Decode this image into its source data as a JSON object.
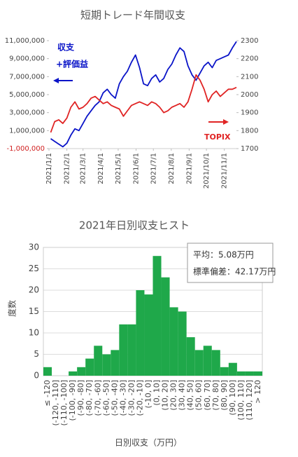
{
  "chart_data": [
    {
      "type": "line",
      "title": "短期トレード年間収支",
      "annotations": [
        "収支",
        "+評価益",
        "TOPIX"
      ],
      "x": [
        "2021/1/4",
        "2021/1/11",
        "2021/1/18",
        "2021/1/25",
        "2021/2/1",
        "2021/2/8",
        "2021/2/15",
        "2021/2/22",
        "2021/3/1",
        "2021/3/8",
        "2021/3/15",
        "2021/3/22",
        "2021/3/29",
        "2021/4/5",
        "2021/4/12",
        "2021/4/19",
        "2021/4/26",
        "2021/5/3",
        "2021/5/10",
        "2021/5/17",
        "2021/5/24",
        "2021/5/31",
        "2021/6/7",
        "2021/6/14",
        "2021/6/21",
        "2021/6/28",
        "2021/7/5",
        "2021/7/12",
        "2021/7/19",
        "2021/7/26",
        "2021/8/2",
        "2021/8/9",
        "2021/8/16",
        "2021/8/23",
        "2021/8/30",
        "2021/9/6",
        "2021/9/13",
        "2021/9/20",
        "2021/9/27",
        "2021/10/4",
        "2021/10/11",
        "2021/10/18",
        "2021/10/25",
        "2021/11/1",
        "2021/11/8",
        "2021/11/15",
        "2021/11/22"
      ],
      "xlim": [
        "2021/1/1",
        "2021/11/22"
      ],
      "xticks": [
        "2021/1/1",
        "2021/2/1",
        "2021/3/1",
        "2021/4/1",
        "2021/5/1",
        "2021/6/1",
        "2021/7/1",
        "2021/8/1",
        "2021/9/1",
        "2021/10/1",
        "2021/11/1"
      ],
      "series": [
        {
          "name": "収支+評価益",
          "color": "#0a14c8",
          "axis": "y",
          "values": [
            100000,
            -200000,
            -500000,
            -800000,
            -400000,
            500000,
            1200000,
            1000000,
            1800000,
            2600000,
            3200000,
            3800000,
            4200000,
            5200000,
            5600000,
            5000000,
            4600000,
            6200000,
            7000000,
            7600000,
            8600000,
            9400000,
            8000000,
            6200000,
            6000000,
            6800000,
            7200000,
            6400000,
            6800000,
            7800000,
            8400000,
            9400000,
            10200000,
            9800000,
            8200000,
            7200000,
            6600000,
            7400000,
            8200000,
            8600000,
            8000000,
            8800000,
            9000000,
            9200000,
            9400000,
            10200000,
            10900000
          ]
        },
        {
          "name": "TOPIX",
          "color": "#e02424",
          "axis": "y2",
          "values": [
            1790,
            1850,
            1860,
            1840,
            1870,
            1930,
            1960,
            1920,
            1930,
            1950,
            1980,
            1990,
            1970,
            1950,
            1960,
            1940,
            1930,
            1920,
            1880,
            1910,
            1940,
            1950,
            1960,
            1950,
            1940,
            1960,
            1950,
            1930,
            1900,
            1910,
            1930,
            1940,
            1950,
            1930,
            1960,
            2030,
            2110,
            2080,
            2030,
            1960,
            2000,
            2020,
            1990,
            2010,
            2030,
            2030,
            2040
          ]
        }
      ],
      "ylim": [
        -1000000,
        11000000
      ],
      "yticks": [
        {
          "value": -1000000,
          "label": "-1,000,000"
        },
        {
          "value": 1000000,
          "label": "1,000,000"
        },
        {
          "value": 3000000,
          "label": "3,000,000"
        },
        {
          "value": 5000000,
          "label": "5,000,000"
        },
        {
          "value": 7000000,
          "label": "7,000,000"
        },
        {
          "value": 9000000,
          "label": "9,000,000"
        },
        {
          "value": 11000000,
          "label": "11,000,000"
        }
      ],
      "negative_tick_color": "#d02020",
      "y2lim": [
        1700,
        2300
      ],
      "y2ticks": [
        1700,
        1800,
        1900,
        2000,
        2100,
        2200,
        2300
      ],
      "grid": false
    },
    {
      "type": "bar",
      "title": "2021年日別収支ヒスト",
      "xlabel": "日別収支（万円）",
      "ylabel": "度数",
      "annotations": [
        "平均：5.08万円",
        "標準偏差：42.17万円"
      ],
      "categories": [
        "≤ -120",
        "(-120, -110]",
        "(-110, -100]",
        "(-100, -90]",
        "(-90, -80]",
        "(-80, -70]",
        "(-70, -60]",
        "(-60, -50]",
        "(-50, -40]",
        "(-40, -30]",
        "(-30, -20]",
        "(-20, -10]",
        "(-10, 0]",
        "(0, 10]",
        "(10, 20]",
        "(20, 30]",
        "(30, 40]",
        "(40, 50]",
        "(50, 60]",
        "(60, 70]",
        "(70, 80]",
        "(80, 90]",
        "(90, 100]",
        "(100, 110]",
        "(110, 120]",
        "> 120"
      ],
      "values": [
        2,
        0,
        0,
        1,
        2,
        4,
        7,
        5,
        6,
        12,
        12,
        20,
        19,
        28,
        23,
        16,
        15,
        9,
        6,
        7,
        6,
        2,
        3,
        1,
        1,
        1
      ],
      "color": "#1fa84a",
      "ylim": [
        0,
        30
      ],
      "yticks": [
        0,
        5,
        10,
        15,
        20,
        25,
        30
      ],
      "grid": true
    }
  ]
}
